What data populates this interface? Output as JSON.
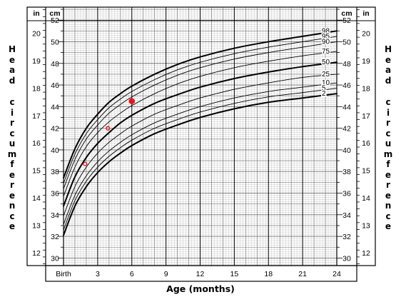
{
  "chart_data": {
    "type": "line",
    "xlabel": "Age (months)",
    "ylabel": "Head circumference",
    "units": {
      "inner": "cm",
      "outer": "in"
    },
    "x_ticks": [
      {
        "value": 0,
        "label": "Birth"
      },
      {
        "value": 3,
        "label": "3"
      },
      {
        "value": 6,
        "label": "6"
      },
      {
        "value": 9,
        "label": "9"
      },
      {
        "value": 12,
        "label": "12"
      },
      {
        "value": 15,
        "label": "15"
      },
      {
        "value": 18,
        "label": "18"
      },
      {
        "value": 21,
        "label": "21"
      },
      {
        "value": 24,
        "label": "24"
      }
    ],
    "xlim": [
      0,
      24
    ],
    "ylim_cm": [
      29.3,
      53.2
    ],
    "cm_ticks": [
      30,
      32,
      34,
      36,
      38,
      40,
      42,
      44,
      46,
      48,
      50,
      52
    ],
    "in_ticks": [
      12,
      13,
      14,
      15,
      16,
      17,
      18,
      19,
      20
    ],
    "grid": true,
    "x": [
      0,
      1,
      2,
      3,
      4,
      5,
      6,
      8,
      10,
      12,
      15,
      18,
      21,
      24
    ],
    "series": [
      {
        "name": "98",
        "bold": true,
        "values": [
          37.4,
          40.1,
          42.0,
          43.3,
          44.4,
          45.2,
          45.9,
          47.0,
          47.9,
          48.6,
          49.4,
          50.0,
          50.5,
          51.0
        ]
      },
      {
        "name": "95",
        "bold": false,
        "values": [
          36.9,
          39.6,
          41.5,
          42.8,
          43.9,
          44.7,
          45.4,
          46.5,
          47.4,
          48.1,
          48.9,
          49.5,
          50.0,
          50.5
        ]
      },
      {
        "name": "90",
        "bold": false,
        "values": [
          36.4,
          39.1,
          41.0,
          42.3,
          43.4,
          44.2,
          44.9,
          46.0,
          46.9,
          47.6,
          48.4,
          49.0,
          49.5,
          50.0
        ]
      },
      {
        "name": "75",
        "bold": false,
        "values": [
          35.7,
          38.4,
          40.3,
          41.6,
          42.6,
          43.4,
          44.1,
          45.2,
          46.1,
          46.8,
          47.6,
          48.2,
          48.7,
          49.1
        ]
      },
      {
        "name": "50",
        "bold": true,
        "values": [
          34.8,
          37.5,
          39.3,
          40.6,
          41.6,
          42.5,
          43.2,
          44.3,
          45.1,
          45.8,
          46.6,
          47.2,
          47.7,
          48.1
        ]
      },
      {
        "name": "25",
        "bold": false,
        "values": [
          33.9,
          36.6,
          38.4,
          39.7,
          40.7,
          41.5,
          42.2,
          43.3,
          44.1,
          44.8,
          45.6,
          46.2,
          46.7,
          47.0
        ]
      },
      {
        "name": "10",
        "bold": false,
        "values": [
          33.1,
          35.8,
          37.6,
          38.9,
          39.9,
          40.7,
          41.4,
          42.5,
          43.3,
          44.0,
          44.8,
          45.4,
          45.8,
          46.2
        ]
      },
      {
        "name": "5",
        "bold": false,
        "values": [
          32.6,
          35.3,
          37.1,
          38.4,
          39.4,
          40.2,
          40.9,
          42.0,
          42.8,
          43.5,
          44.3,
          44.9,
          45.3,
          45.7
        ]
      },
      {
        "name": "2",
        "bold": true,
        "values": [
          32.1,
          34.8,
          36.6,
          37.9,
          38.9,
          39.7,
          40.4,
          41.5,
          42.3,
          43.0,
          43.8,
          44.4,
          44.8,
          45.2
        ]
      }
    ],
    "points": [
      {
        "x": 1.9,
        "y": 38.7
      },
      {
        "x": 3.9,
        "y": 42.0
      },
      {
        "x": 6.0,
        "y": 44.5
      }
    ],
    "point_color": "#e8141e"
  }
}
